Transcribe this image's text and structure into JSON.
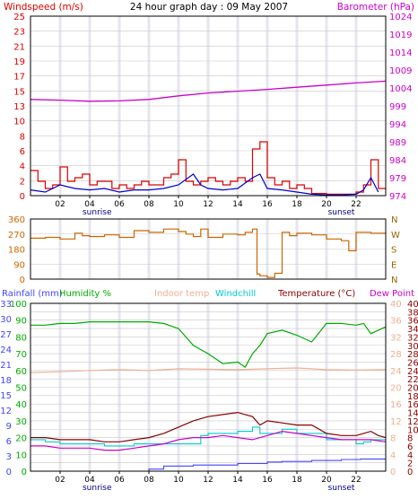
{
  "chart_title": "24 hour graph day : 09 May 2007",
  "colors": {
    "background": "#ffffff",
    "band": "#e6e6ee",
    "frame": "#000000",
    "grid_line": "#c8c8c8",
    "windspeed": "#dd0000",
    "gust": "#0000cc",
    "barometer": "#cc00cc",
    "wind_direction": "#cc6600",
    "compass": "#996600",
    "rainfall": "#4444ff",
    "humidity": "#00aa00",
    "indoor": "#f0b090",
    "windchill": "#00cccc",
    "temperature": "#880000",
    "dew_point": "#cc00cc"
  },
  "chart_data": [
    {
      "type": "line",
      "panel": "wind_barometer",
      "title": "24 hour graph day : 09 May 2007",
      "y_left_label": "Windspeed (m/s)",
      "y_right_label": "Barometer (hPa)",
      "y_left_ticks": [
        "0",
        "2",
        "4",
        "6",
        "8",
        "10",
        "13",
        "15",
        "17",
        "19",
        "21",
        "23",
        "25"
      ],
      "y_right_ticks": [
        "974",
        "979",
        "984",
        "989",
        "994",
        "999",
        "1004",
        "1009",
        "1014",
        "1019",
        "1024"
      ],
      "ylim_left": [
        0,
        25
      ],
      "ylim_right": [
        974,
        1024
      ],
      "x_ticks": [
        "02",
        "04",
        "06",
        "08",
        "10",
        "12",
        "14",
        "16",
        "18",
        "20",
        "22"
      ],
      "xlim_hours": [
        0,
        24
      ],
      "event_labels": [
        {
          "text": "sunrise",
          "hour": 4.5
        },
        {
          "text": "sunset",
          "hour": 21.0
        }
      ],
      "series": [
        {
          "name": "Windspeed (m/s)",
          "x": [
            0,
            0.5,
            1,
            1.5,
            2,
            2.5,
            3,
            3.5,
            4,
            4.5,
            5,
            5.5,
            6,
            6.5,
            7,
            7.5,
            8,
            8.5,
            9,
            9.5,
            10,
            10.5,
            11,
            11.5,
            12,
            12.5,
            13,
            13.5,
            14,
            14.5,
            15,
            15.5,
            16,
            16.5,
            17,
            17.5,
            18,
            18.5,
            19,
            19.5,
            20,
            20.5,
            21,
            21.5,
            22,
            22.5,
            23,
            23.5
          ],
          "values": [
            3.5,
            2,
            1,
            1.5,
            4,
            2,
            2.5,
            3,
            1.5,
            2,
            2,
            1,
            1.5,
            1,
            1.5,
            2,
            1.5,
            1.5,
            2.5,
            3,
            5,
            2,
            1.5,
            2,
            2.5,
            2,
            1.5,
            2,
            2.5,
            2,
            6.5,
            7.5,
            2.5,
            1.5,
            2,
            1,
            1.5,
            1,
            0.3,
            0.3,
            0.2,
            0.2,
            0.2,
            0.2,
            0.5,
            1.5,
            5,
            1
          ]
        },
        {
          "name": "Gust",
          "x": [
            0,
            1,
            2,
            3,
            4,
            5,
            6,
            7,
            8,
            9,
            10,
            11,
            11.5,
            12,
            13,
            14,
            15,
            15.5,
            16,
            17,
            18,
            19,
            20,
            21,
            22,
            22.5,
            23,
            23.5
          ],
          "values": [
            0.8,
            0.5,
            1.5,
            1,
            0.8,
            1,
            0.5,
            0.8,
            0.8,
            1,
            1.5,
            3,
            1.5,
            1,
            0.8,
            1,
            2.5,
            3,
            1,
            0.8,
            0.5,
            0.2,
            0.1,
            0.1,
            0.2,
            0.8,
            2.5,
            0.5
          ]
        },
        {
          "name": "Barometer (hPa)",
          "x": [
            0,
            2,
            4,
            6,
            8,
            10,
            12,
            14,
            16,
            18,
            20,
            22,
            24
          ],
          "values": [
            1000.8,
            1000.6,
            1000.3,
            1000.4,
            1000.8,
            1001.8,
            1002.6,
            1003.1,
            1003.6,
            1004.2,
            1004.8,
            1005.4,
            1005.9
          ]
        }
      ]
    },
    {
      "type": "line",
      "panel": "wind_direction",
      "y_left_ticks": [
        "0",
        "90",
        "180",
        "270",
        "360"
      ],
      "y_right_ticks": [
        "N",
        "E",
        "S",
        "W",
        "N"
      ],
      "ylim": [
        0,
        360
      ],
      "series": [
        {
          "name": "Wind direction (°)",
          "x": [
            0,
            1,
            2,
            3,
            3.5,
            4,
            5,
            6,
            7,
            8,
            9,
            10,
            10.5,
            11,
            11.5,
            12,
            13,
            14,
            14.5,
            15,
            15.3,
            15.5,
            16,
            16.5,
            17,
            17.5,
            18,
            19,
            20,
            21,
            21.5,
            22,
            23,
            24
          ],
          "values": [
            245,
            250,
            240,
            275,
            260,
            255,
            265,
            250,
            290,
            280,
            300,
            285,
            270,
            255,
            300,
            250,
            270,
            265,
            280,
            300,
            30,
            20,
            10,
            35,
            280,
            260,
            275,
            265,
            240,
            230,
            170,
            280,
            275,
            280
          ]
        }
      ]
    },
    {
      "type": "line",
      "panel": "temperature_humidity",
      "labels": [
        "Rainfall (mm)",
        "Humidity %",
        "Indoor temp",
        "Windchill",
        "Temperature (°C)",
        "Dew Point"
      ],
      "y_rain_ticks": [
        "0",
        "3",
        "6",
        "9",
        "12",
        "15",
        "18",
        "21",
        "24",
        "27",
        "30",
        "33"
      ],
      "y_humidity_ticks": [
        "0",
        "10",
        "20",
        "30",
        "40",
        "50",
        "60",
        "70",
        "80",
        "90",
        "100"
      ],
      "y_temp_ticks_a": [
        "0",
        "4",
        "8",
        "12",
        "16",
        "20",
        "24",
        "28",
        "32",
        "36",
        "40"
      ],
      "y_temp_ticks_b": [
        "0",
        "2",
        "4",
        "6",
        "8",
        "10",
        "12",
        "14",
        "16",
        "18",
        "20",
        "22",
        "24",
        "26",
        "28",
        "30",
        "32",
        "34",
        "36",
        "38",
        "40"
      ],
      "ylim_temp": [
        0,
        40
      ],
      "series": [
        {
          "name": "Rainfall (mm)",
          "x": [
            0,
            7.5,
            8,
            9,
            11,
            14,
            16,
            17,
            19,
            21,
            22.3,
            24
          ],
          "values": [
            0,
            0,
            0.4,
            1.0,
            1.2,
            1.5,
            1.8,
            1.9,
            2.1,
            2.3,
            2.4,
            2.4
          ]
        },
        {
          "name": "Humidity %",
          "x": [
            0,
            1,
            2,
            3,
            4,
            5,
            6,
            7,
            8,
            9,
            10,
            11,
            12,
            13,
            14,
            14.5,
            15,
            15.5,
            16,
            17,
            18,
            19,
            20,
            21,
            22,
            22.5,
            23,
            23.5,
            24
          ],
          "values": [
            87,
            87,
            88,
            88,
            89,
            89,
            89,
            89,
            89,
            88,
            85,
            75,
            70,
            64,
            65,
            62,
            70,
            75,
            82,
            84,
            81,
            77,
            88,
            88,
            87,
            88,
            82,
            84,
            86
          ]
        },
        {
          "name": "Indoor temp",
          "x": [
            0,
            2,
            4,
            6,
            8,
            10,
            12,
            14,
            16,
            18,
            20,
            22,
            24
          ],
          "values": [
            23.5,
            23.7,
            24,
            24.2,
            24,
            24.4,
            24.3,
            24.2,
            24.4,
            24.6,
            24.2,
            24.1,
            24.2
          ]
        },
        {
          "name": "Windchill",
          "x": [
            0,
            1,
            2,
            3,
            4,
            5,
            6,
            7,
            11.5,
            12,
            14,
            15,
            15.5,
            16,
            17,
            18,
            20,
            22,
            22.5,
            23
          ],
          "values": [
            7.5,
            7,
            6.5,
            6.5,
            6.5,
            6,
            6,
            6.5,
            8.5,
            9,
            9.5,
            10.5,
            9,
            9,
            10,
            9,
            7.5,
            6.5,
            7,
            7.5
          ]
        },
        {
          "name": "Temperature (°C)",
          "x": [
            0,
            1,
            2,
            3,
            4,
            5,
            6,
            7,
            8,
            9,
            10,
            11,
            12,
            13,
            14,
            14.5,
            15,
            15.5,
            16,
            17,
            18,
            19,
            20,
            21,
            22,
            22.5,
            23,
            23.5,
            24
          ],
          "values": [
            8,
            8,
            7.5,
            7.5,
            7.5,
            7,
            7,
            7.5,
            8,
            9,
            10.5,
            12,
            13,
            13.5,
            14,
            13.5,
            13,
            11,
            12,
            11.5,
            11,
            11,
            9,
            8.5,
            8.5,
            9,
            9.5,
            8.5,
            8
          ]
        },
        {
          "name": "Dew Point",
          "x": [
            0,
            1,
            2,
            3,
            4,
            5,
            6,
            7,
            8,
            9,
            10,
            11,
            12,
            13,
            14,
            15,
            16,
            17,
            18,
            19,
            20,
            21,
            22,
            23,
            24
          ],
          "values": [
            6,
            6,
            5.5,
            5.5,
            5.5,
            5,
            5,
            5.5,
            6,
            6.5,
            7.5,
            8,
            8,
            8.5,
            8,
            7.5,
            8.5,
            9.5,
            9,
            8.5,
            8,
            7.5,
            7.5,
            7.5,
            7
          ]
        }
      ]
    }
  ]
}
